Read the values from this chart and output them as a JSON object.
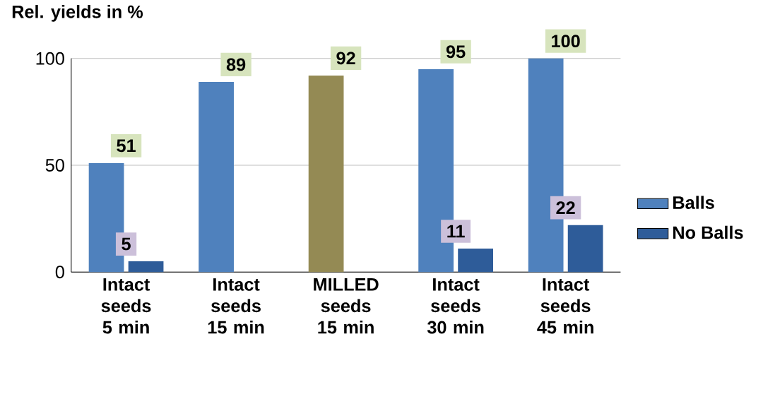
{
  "chart_data": {
    "type": "bar",
    "ylabel": "Rel. yields in %",
    "categories": [
      "Intact seeds 5 min",
      "Intact seeds 15 min",
      "MILLED seeds 15 min",
      "Intact seeds 30 min",
      "Intact seeds 45 min"
    ],
    "series": [
      {
        "name": "Balls",
        "color": "#4f81bd",
        "colors": [
          "#4f81bd",
          "#4f81bd",
          "#948a54",
          "#4f81bd",
          "#4f81bd"
        ],
        "values": [
          51,
          89,
          92,
          95,
          100
        ]
      },
      {
        "name": "No Balls",
        "color": "#2e5c99",
        "values": [
          5,
          null,
          null,
          11,
          22
        ]
      }
    ],
    "ylim": [
      0,
      100
    ],
    "yticks": [
      0,
      50,
      100
    ],
    "grid": "y",
    "legend": "right",
    "data_labels": true
  }
}
